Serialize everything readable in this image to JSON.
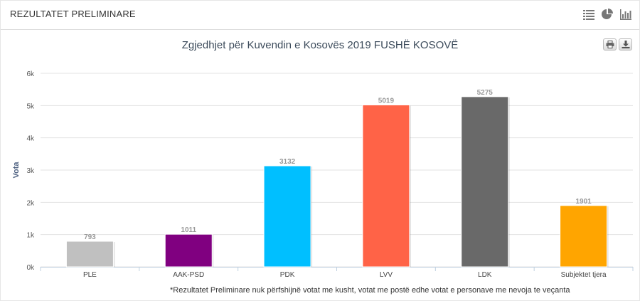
{
  "panel": {
    "title": "REZULTATET PRELIMINARE"
  },
  "icons": [
    "list-icon",
    "pie-chart-icon",
    "bar-chart-icon",
    "print-icon",
    "download-icon"
  ],
  "colors": {
    "PLE": "#c0c0c0",
    "AAK-PSD": "#800080",
    "PDK": "#00bfff",
    "LVV": "#ff6347",
    "LDK": "#696969",
    "Subjektet tjera": "#ffa500"
  },
  "chart_data": {
    "type": "bar",
    "title": "Zgjedhjet për Kuvendin e Kosovës 2019 FUSHË KOSOVË",
    "xlabel": "",
    "ylabel": "Vota",
    "categories": [
      "PLE",
      "AAK-PSD",
      "PDK",
      "LVV",
      "LDK",
      "Subjektet tjera"
    ],
    "values": [
      793,
      1011,
      3132,
      5019,
      5275,
      1901
    ],
    "ylim": [
      0,
      6000
    ],
    "yticks": [
      0,
      1000,
      2000,
      3000,
      4000,
      5000,
      6000
    ],
    "ytick_labels": [
      "0k",
      "1k",
      "2k",
      "3k",
      "4k",
      "5k",
      "6k"
    ],
    "grid": true,
    "data_labels": true
  },
  "footnote": "*Rezultatet Preliminare nuk përfshijnë votat me kusht, votat me postë edhe votat e personave me nevoja te veçanta"
}
